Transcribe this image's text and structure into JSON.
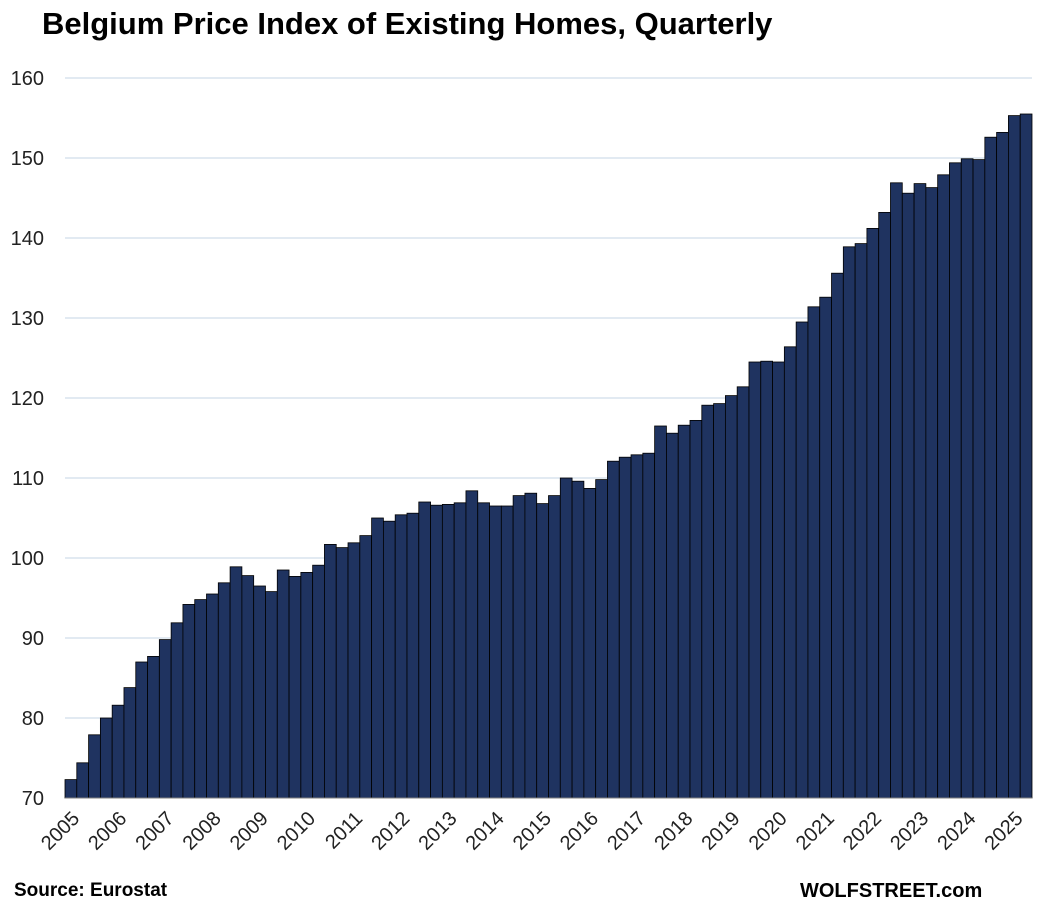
{
  "chart_data": {
    "type": "bar",
    "title": "Belgium Price Index of Existing Homes, Quarterly",
    "xlabel": "",
    "ylabel": "",
    "ylim": [
      70,
      160
    ],
    "y_ticks": [
      70,
      80,
      90,
      100,
      110,
      120,
      130,
      140,
      150,
      160
    ],
    "x_tick_labels": [
      "2005",
      "2006",
      "2007",
      "2008",
      "2009",
      "2010",
      "2011",
      "2012",
      "2013",
      "2014",
      "2015",
      "2016",
      "2017",
      "2018",
      "2019",
      "2020",
      "2021",
      "2022",
      "2023",
      "2024",
      "2025"
    ],
    "grid": true,
    "legend": "none",
    "bar_color": "#1f3360",
    "bar_edge_color": "#000000",
    "grid_color": "#c5d5e4",
    "categories": [
      "2005Q1",
      "2005Q2",
      "2005Q3",
      "2005Q4",
      "2006Q1",
      "2006Q2",
      "2006Q3",
      "2006Q4",
      "2007Q1",
      "2007Q2",
      "2007Q3",
      "2007Q4",
      "2008Q1",
      "2008Q2",
      "2008Q3",
      "2008Q4",
      "2009Q1",
      "2009Q2",
      "2009Q3",
      "2009Q4",
      "2010Q1",
      "2010Q2",
      "2010Q3",
      "2010Q4",
      "2011Q1",
      "2011Q2",
      "2011Q3",
      "2011Q4",
      "2012Q1",
      "2012Q2",
      "2012Q3",
      "2012Q4",
      "2013Q1",
      "2013Q2",
      "2013Q3",
      "2013Q4",
      "2014Q1",
      "2014Q2",
      "2014Q3",
      "2014Q4",
      "2015Q1",
      "2015Q2",
      "2015Q3",
      "2015Q4",
      "2016Q1",
      "2016Q2",
      "2016Q3",
      "2016Q4",
      "2017Q1",
      "2017Q2",
      "2017Q3",
      "2017Q4",
      "2018Q1",
      "2018Q2",
      "2018Q3",
      "2018Q4",
      "2019Q1",
      "2019Q2",
      "2019Q3",
      "2019Q4",
      "2020Q1",
      "2020Q2",
      "2020Q3",
      "2020Q4",
      "2021Q1",
      "2021Q2",
      "2021Q3",
      "2021Q4",
      "2022Q1",
      "2022Q2",
      "2022Q3",
      "2022Q4",
      "2023Q1",
      "2023Q2",
      "2023Q3",
      "2023Q4",
      "2024Q1",
      "2024Q2",
      "2024Q3",
      "2024Q4",
      "2025Q1",
      "2025Q2"
    ],
    "values": [
      72.3,
      74.4,
      77.9,
      80.0,
      81.6,
      83.8,
      87.0,
      87.7,
      89.8,
      91.9,
      94.2,
      94.8,
      95.5,
      96.9,
      98.9,
      97.8,
      96.5,
      95.8,
      98.5,
      97.7,
      98.2,
      99.1,
      101.7,
      101.3,
      101.9,
      102.8,
      105.0,
      104.6,
      105.4,
      105.6,
      107.0,
      106.6,
      106.7,
      106.9,
      108.4,
      106.9,
      106.5,
      106.5,
      107.8,
      108.1,
      106.8,
      107.8,
      110.0,
      109.6,
      108.7,
      109.8,
      112.1,
      112.6,
      112.9,
      113.1,
      116.5,
      115.6,
      116.6,
      117.2,
      119.1,
      119.3,
      120.3,
      121.4,
      124.5,
      124.6,
      124.5,
      126.4,
      129.5,
      131.4,
      132.6,
      135.6,
      138.9,
      139.3,
      141.2,
      143.2,
      146.9,
      145.6,
      146.8,
      146.3,
      147.9,
      149.4,
      149.9,
      149.8,
      152.6,
      153.2,
      155.3,
      155.5
    ]
  },
  "footer": {
    "source": "Source: Eurostat",
    "brand": "WOLFSTREET.com"
  }
}
